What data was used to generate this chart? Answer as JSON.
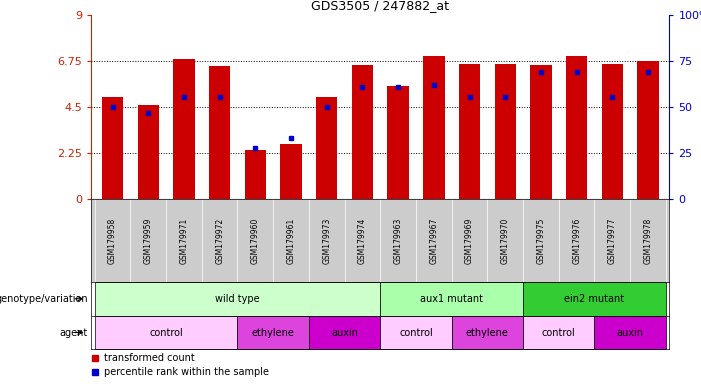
{
  "title": "GDS3505 / 247882_at",
  "samples": [
    "GSM179958",
    "GSM179959",
    "GSM179971",
    "GSM179972",
    "GSM179960",
    "GSM179961",
    "GSM179973",
    "GSM179974",
    "GSM179963",
    "GSM179967",
    "GSM179969",
    "GSM179970",
    "GSM179975",
    "GSM179976",
    "GSM179977",
    "GSM179978"
  ],
  "bar_heights": [
    5.0,
    4.6,
    6.85,
    6.5,
    2.4,
    2.7,
    5.0,
    6.55,
    5.55,
    7.0,
    6.6,
    6.6,
    6.55,
    7.0,
    6.6,
    6.75
  ],
  "blue_values": [
    4.5,
    4.2,
    5.0,
    5.0,
    2.5,
    3.0,
    4.5,
    5.5,
    5.5,
    5.6,
    5.0,
    5.0,
    6.2,
    6.2,
    5.0,
    6.2
  ],
  "ylim_left": [
    0,
    9
  ],
  "ylim_right": [
    0,
    100
  ],
  "yticks_left": [
    0,
    2.25,
    4.5,
    6.75,
    9
  ],
  "yticks_right": [
    0,
    25,
    50,
    75,
    100
  ],
  "bar_color": "#cc0000",
  "blue_color": "#0000cc",
  "label_color_left": "#cc2200",
  "label_color_right": "#0000cc",
  "xtick_bg": "#cccccc",
  "genotype_groups": [
    {
      "label": "wild type",
      "start": 0,
      "end": 8,
      "color": "#ccffcc"
    },
    {
      "label": "aux1 mutant",
      "start": 8,
      "end": 12,
      "color": "#aaffaa"
    },
    {
      "label": "ein2 mutant",
      "start": 12,
      "end": 16,
      "color": "#33cc33"
    }
  ],
  "agent_groups": [
    {
      "label": "control",
      "start": 0,
      "end": 4,
      "color": "#ffccff"
    },
    {
      "label": "ethylene",
      "start": 4,
      "end": 6,
      "color": "#dd44dd"
    },
    {
      "label": "auxin",
      "start": 6,
      "end": 8,
      "color": "#cc00cc"
    },
    {
      "label": "control",
      "start": 8,
      "end": 10,
      "color": "#ffccff"
    },
    {
      "label": "ethylene",
      "start": 10,
      "end": 12,
      "color": "#dd44dd"
    },
    {
      "label": "control",
      "start": 12,
      "end": 14,
      "color": "#ffccff"
    },
    {
      "label": "auxin",
      "start": 14,
      "end": 16,
      "color": "#cc00cc"
    }
  ]
}
